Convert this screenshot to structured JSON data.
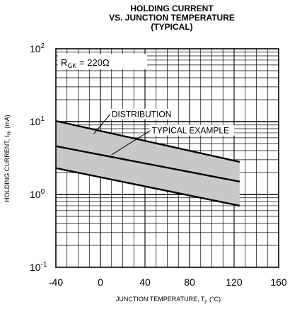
{
  "chart_data": {
    "type": "line",
    "title_lines": [
      "HOLDING CURRENT",
      "VS. JUNCTION TEMPERATURE",
      "(TYPICAL)"
    ],
    "xlabel": {
      "main": "JUNCTION TEMPERATURE, T",
      "sub": "j",
      "unit": ", (°C)"
    },
    "ylabel": {
      "main": "HOLDING CURRENT, I",
      "sub": "H",
      "unit": ", (mA)"
    },
    "x_scale": "linear",
    "y_scale": "log",
    "xlim": [
      -40,
      160
    ],
    "ylim": [
      0.1,
      100
    ],
    "x_ticks": [
      {
        "value": -40,
        "label": "-40"
      },
      {
        "value": 0,
        "label": "0"
      },
      {
        "value": 40,
        "label": "40"
      },
      {
        "value": 80,
        "label": "80"
      },
      {
        "value": 120,
        "label": "120"
      },
      {
        "value": 160,
        "label": "160"
      }
    ],
    "y_ticks": [
      {
        "value": 0.1,
        "base": "10",
        "exp": "-1"
      },
      {
        "value": 1,
        "base": "10",
        "exp": "0"
      },
      {
        "value": 10,
        "base": "10",
        "exp": "1"
      },
      {
        "value": 100,
        "base": "10",
        "exp": "2"
      }
    ],
    "grid": true,
    "condition": {
      "prefix": "R",
      "sub": "GK",
      "value": " = 220Ω"
    },
    "series": [
      {
        "role": "upper",
        "x": [
          -40,
          125
        ],
        "y": [
          10.2,
          2.8
        ]
      },
      {
        "role": "typical",
        "x": [
          -40,
          125
        ],
        "y": [
          4.6,
          1.5
        ]
      },
      {
        "role": "lower",
        "x": [
          -40,
          125
        ],
        "y": [
          2.3,
          0.7
        ]
      }
    ],
    "band": {
      "between": [
        "upper",
        "lower"
      ],
      "color": "#c8c8c8"
    },
    "annotations": [
      {
        "text": "DISTRIBUTION",
        "x": 10,
        "y": 11.5,
        "target": {
          "x": -6,
          "y": 6.8
        }
      },
      {
        "text": "TYPICAL EXAMPLE",
        "x": 46,
        "y": 6.9,
        "target": {
          "x": 10,
          "y": 3.5
        }
      }
    ]
  }
}
